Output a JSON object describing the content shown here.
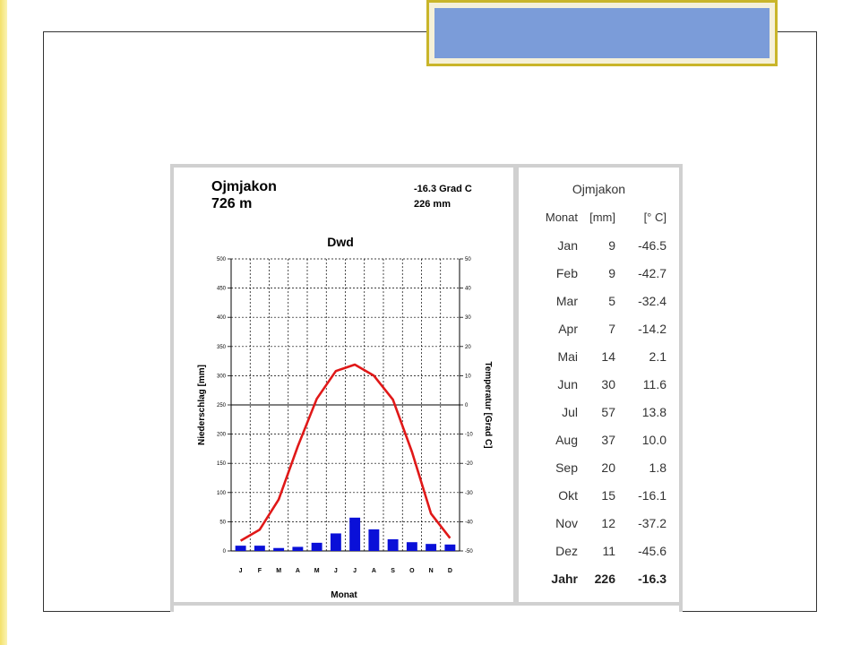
{
  "title_bar": {
    "fill": "#7b9cd9",
    "border": "#c9b52a"
  },
  "station": {
    "name": "Ojmjakon",
    "elevation": "726 m",
    "annual_temp": "-16.3 Grad C",
    "annual_precip": "226 mm"
  },
  "chart_data": {
    "type": "climate-diagram",
    "title": "Dwd",
    "xlabel": "Monat",
    "ylabel_left": "Niederschlag [mm]",
    "ylabel_right": "Temperatur [Grad C]",
    "categories": [
      "J",
      "F",
      "M",
      "A",
      "M",
      "J",
      "J",
      "A",
      "S",
      "O",
      "N",
      "D"
    ],
    "precip_ylim": [
      0,
      500
    ],
    "precip_ticks": [
      0,
      50,
      100,
      150,
      200,
      250,
      300,
      350,
      400,
      450,
      500
    ],
    "temp_ylim": [
      -50,
      50
    ],
    "temp_ticks": [
      -50,
      -40,
      -30,
      -20,
      -10,
      0,
      10,
      20,
      30,
      40,
      50
    ],
    "series": [
      {
        "type": "bar",
        "color": "#0a10d8",
        "values": [
          9,
          9,
          5,
          7,
          14,
          30,
          57,
          37,
          20,
          15,
          12,
          11
        ]
      },
      {
        "type": "line",
        "color": "#e01818",
        "values": [
          -46.5,
          -42.7,
          -32.4,
          -14.2,
          2.1,
          11.6,
          13.8,
          10.0,
          1.8,
          -16.1,
          -37.2,
          -45.6
        ]
      }
    ],
    "grid": true
  },
  "table": {
    "station": "Ojmjakon",
    "headers": [
      "Monat",
      "[mm]",
      "[° C]"
    ],
    "rows": [
      [
        "Jan",
        "9",
        "-46.5"
      ],
      [
        "Feb",
        "9",
        "-42.7"
      ],
      [
        "Mar",
        "5",
        "-32.4"
      ],
      [
        "Apr",
        "7",
        "-14.2"
      ],
      [
        "Mai",
        "14",
        "2.1"
      ],
      [
        "Jun",
        "30",
        "11.6"
      ],
      [
        "Jul",
        "57",
        "13.8"
      ],
      [
        "Aug",
        "37",
        "10.0"
      ],
      [
        "Sep",
        "20",
        "1.8"
      ],
      [
        "Okt",
        "15",
        "-16.1"
      ],
      [
        "Nov",
        "12",
        "-37.2"
      ],
      [
        "Dez",
        "11",
        "-45.6"
      ]
    ],
    "total": [
      "Jahr",
      "226",
      "-16.3"
    ]
  }
}
